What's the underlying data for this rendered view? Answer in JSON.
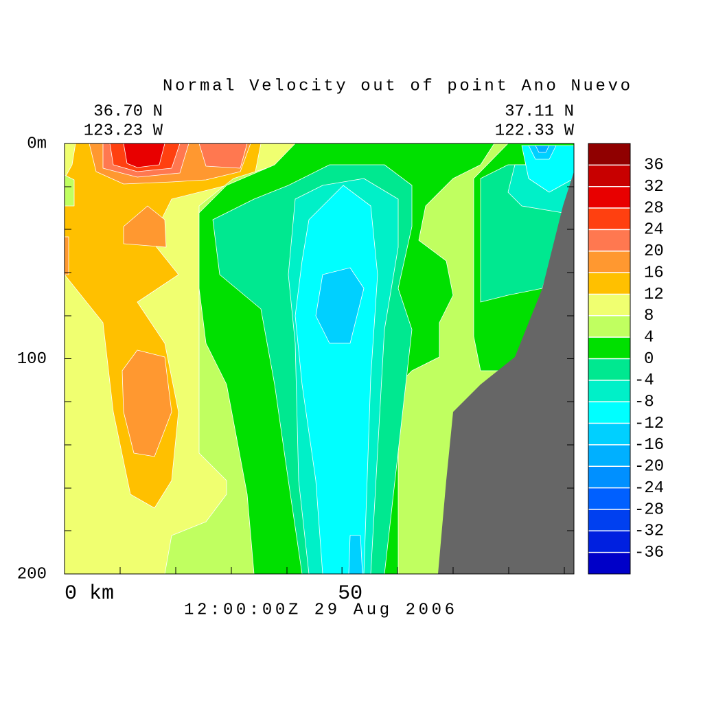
{
  "chart_data": {
    "type": "contour",
    "title": "Normal Velocity out of point Ano Nuevo",
    "start_point": [
      "36.70 N",
      "123.23 W"
    ],
    "end_point": [
      "37.11 N",
      "122.33 W"
    ],
    "time": "12:00:00Z  29 Aug 2006",
    "xlim": [
      0,
      91.8
    ],
    "xticks": [
      {
        "value": 0,
        "label": "0 km"
      },
      50
    ],
    "ylim": [
      0,
      200
    ],
    "yticks": [
      {
        "value": 0,
        "label": "0m"
      },
      100,
      200
    ],
    "y_inverted": true,
    "mask_color": "#666666",
    "colorbar": {
      "lim": [
        -40,
        40
      ],
      "levels": [
        -40,
        -36,
        -32,
        -28,
        -24,
        -20,
        -16,
        -12,
        -8,
        -4,
        0,
        4,
        8,
        12,
        16,
        20,
        24,
        28,
        32,
        36,
        40
      ],
      "colors": [
        "#0000c8",
        "#0020e0",
        "#0040f0",
        "#0060ff",
        "#0090ff",
        "#00b0ff",
        "#00d0ff",
        "#00ffff",
        "#00f0c8",
        "#00e890",
        "#00e000",
        "#c0ff60",
        "#f0ff70",
        "#ffc000",
        "#ff9830",
        "#ff7850",
        "#ff4010",
        "#e80000",
        "#c80000",
        "#900000"
      ],
      "ticks": [
        36,
        32,
        28,
        24,
        20,
        16,
        12,
        8,
        4,
        0,
        -4,
        -8,
        -12,
        -16,
        -20,
        -24,
        -28,
        -32,
        -36
      ]
    }
  }
}
